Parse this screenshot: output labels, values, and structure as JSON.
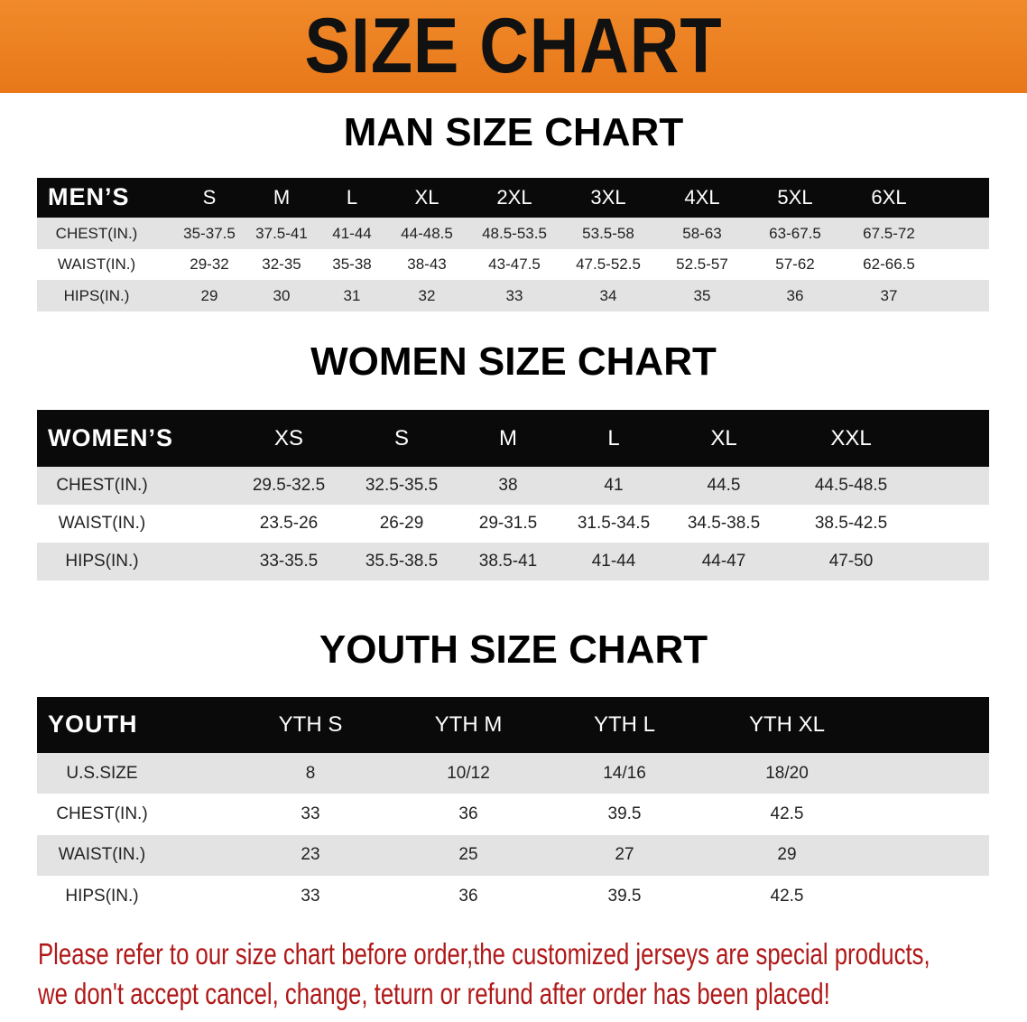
{
  "banner_title": "SIZE CHART",
  "men": {
    "title": "MAN SIZE CHART",
    "header_label": "MEN’S",
    "sizes": [
      "S",
      "M",
      "L",
      "XL",
      "2XL",
      "3XL",
      "4XL",
      "5XL",
      "6XL"
    ],
    "rows": [
      {
        "label": "CHEST(IN.)",
        "values": [
          "35-37.5",
          "37.5-41",
          "41-44",
          "44-48.5",
          "48.5-53.5",
          "53.5-58",
          "58-63",
          "63-67.5",
          "67.5-72"
        ]
      },
      {
        "label": "WAIST(IN.)",
        "values": [
          "29-32",
          "32-35",
          "35-38",
          "38-43",
          "43-47.5",
          "47.5-52.5",
          "52.5-57",
          "57-62",
          "62-66.5"
        ]
      },
      {
        "label": "HIPS(IN.)",
        "values": [
          "29",
          "30",
          "31",
          "32",
          "33",
          "34",
          "35",
          "36",
          "37"
        ]
      }
    ]
  },
  "women": {
    "title": "WOMEN SIZE CHART",
    "header_label": "WOMEN’S",
    "sizes": [
      "XS",
      "S",
      "M",
      "L",
      "XL",
      "XXL"
    ],
    "rows": [
      {
        "label": "CHEST(IN.)",
        "values": [
          "29.5-32.5",
          "32.5-35.5",
          "38",
          "41",
          "44.5",
          "44.5-48.5"
        ]
      },
      {
        "label": "WAIST(IN.)",
        "values": [
          "23.5-26",
          "26-29",
          "29-31.5",
          "31.5-34.5",
          "34.5-38.5",
          "38.5-42.5"
        ]
      },
      {
        "label": "HIPS(IN.)",
        "values": [
          "33-35.5",
          "35.5-38.5",
          "38.5-41",
          "41-44",
          "44-47",
          "47-50"
        ]
      }
    ]
  },
  "youth": {
    "title": "YOUTH SIZE CHART",
    "header_label": "YOUTH",
    "sizes": [
      "YTH S",
      "YTH M",
      "YTH L",
      "YTH XL"
    ],
    "rows": [
      {
        "label": "U.S.SIZE",
        "values": [
          "8",
          "10/12",
          "14/16",
          "18/20"
        ]
      },
      {
        "label": "CHEST(IN.)",
        "values": [
          "33",
          "36",
          "39.5",
          "42.5"
        ]
      },
      {
        "label": "WAIST(IN.)",
        "values": [
          "23",
          "25",
          "27",
          "29"
        ]
      },
      {
        "label": "HIPS(IN.)",
        "values": [
          "33",
          "36",
          "39.5",
          "42.5"
        ]
      }
    ]
  },
  "note": {
    "line1": "Please refer to our size chart before order,the customized jerseys are special products,",
    "line2": "we don't accept cancel, change, teturn or refund after order has been placed!"
  },
  "colors": {
    "banner": "#e8781a",
    "header": "#0a0a0a",
    "stripe": "#e3e3e3",
    "note": "#b01818"
  }
}
